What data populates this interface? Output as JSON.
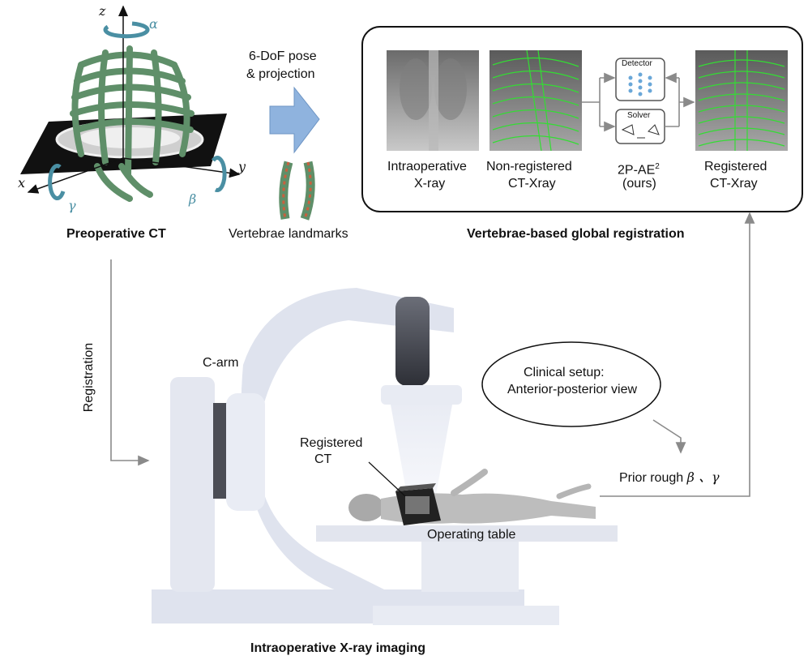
{
  "top": {
    "preop_ct_label": "Preoperative CT",
    "axis_z": "z",
    "axis_x": "x",
    "axis_y": "y",
    "angle_alpha": "α",
    "angle_beta": "β",
    "angle_gamma": "γ",
    "pose_line1": "6-DoF pose",
    "pose_line2": "& projection",
    "landmarks_label": "Vertebrae landmarks"
  },
  "registration_box": {
    "title": "Vertebrae-based global registration",
    "intraop_line1": "Intraoperative",
    "intraop_line2": "X-ray",
    "nonreg_line1": "Non-registered",
    "nonreg_line2": "CT-Xray",
    "method_name": "2P-AE",
    "method_sup": "2",
    "method_line2": "(ours)",
    "detector_label": "Detector",
    "solver_label": "Solver",
    "reg_line1": "Registered",
    "reg_line2": "CT-Xray"
  },
  "bottom": {
    "registration_label": "Registration",
    "carm_label": "C-arm",
    "registered_ct_line1": "Registered",
    "registered_ct_line2": "CT",
    "operating_table_label": "Operating table",
    "clinical_line1": "Clinical setup:",
    "clinical_line2": "Anterior-posterior view",
    "prior_text": "Prior rough",
    "prior_symbols": "β 、γ",
    "caption": "Intraoperative X-ray imaging"
  },
  "colors": {
    "bone_green": "#5f8f69",
    "arrow_blue": "#8fb3de",
    "rotation_teal": "#4a8fa3",
    "overlay_green": "#33dd33",
    "carm_grey": "#dfe3ee",
    "line_grey": "#8a8a8a"
  }
}
